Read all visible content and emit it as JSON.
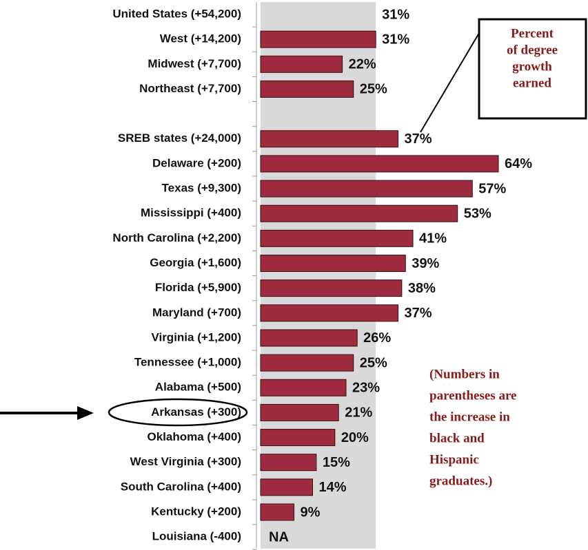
{
  "chart_data": {
    "type": "bar",
    "orientation": "horizontal",
    "categories": [
      "United States (+54,200)",
      "West (+14,200)",
      "Midwest (+7,700)",
      "Northeast (+7,700)",
      null,
      "SREB states (+24,000)",
      "Delaware (+200)",
      "Texas (+9,300)",
      "Mississippi (+400)",
      "North Carolina (+2,200)",
      "Georgia (+1,600)",
      "Florida (+5,900)",
      "Maryland (+700)",
      "Virginia (+1,200)",
      "Tennessee (+1,000)",
      "Alabama (+500)",
      "Arkansas (+300)",
      "Oklahoma (+400)",
      "West Virginia (+300)",
      "South Carolina (+400)",
      "Kentucky (+200)",
      "Louisiana (-400)"
    ],
    "values": [
      31,
      31,
      22,
      25,
      null,
      37,
      64,
      57,
      53,
      41,
      39,
      38,
      37,
      26,
      25,
      23,
      21,
      20,
      15,
      14,
      9,
      null
    ],
    "value_labels": [
      "31%",
      "31%",
      "22%",
      "25%",
      null,
      "37%",
      "64%",
      "57%",
      "53%",
      "41%",
      "39%",
      "38%",
      "37%",
      "26%",
      "25%",
      "23%",
      "21%",
      "20%",
      "15%",
      "14%",
      "9%",
      "NA"
    ],
    "color": "#9e2b3f",
    "reference_color": "#d9d9d9",
    "annotations": [
      [
        "Percent",
        "of degree",
        "growth",
        "earned"
      ],
      [
        "(Numbers in",
        "parentheses are",
        "the increase in",
        "black and",
        "Hispanic",
        "graduates.)"
      ]
    ]
  }
}
